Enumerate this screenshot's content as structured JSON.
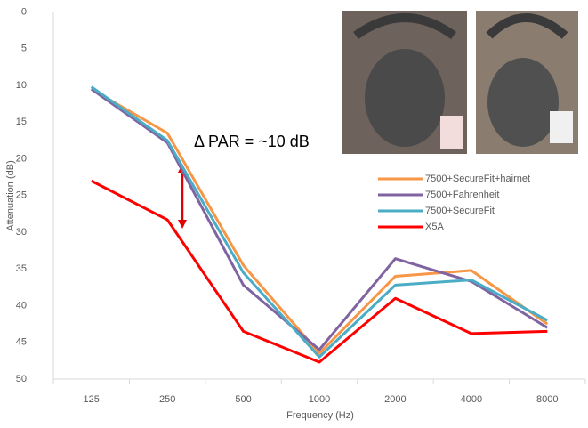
{
  "chart_data": {
    "type": "line",
    "x_label": "Frequency (Hz)",
    "y_label": "Attenuation (dB)",
    "annotation": "Δ PAR = ~10 dB",
    "categories": [
      "125",
      "250",
      "500",
      "1000",
      "2000",
      "4000",
      "8000"
    ],
    "ylim": [
      50,
      0
    ],
    "yticks": [
      0,
      5,
      10,
      15,
      20,
      25,
      30,
      35,
      40,
      45,
      50
    ],
    "grid": false,
    "legend": "right",
    "series": [
      {
        "name": "7500+SecureFit+hairnet",
        "color": "#f79646",
        "values": [
          10.5,
          16.5,
          34.5,
          46.5,
          36,
          35.2,
          42.5
        ]
      },
      {
        "name": "7500+Fahrenheit",
        "color": "#8064a2",
        "values": [
          10.5,
          17.8,
          37.2,
          46,
          33.6,
          36.7,
          43
        ]
      },
      {
        "name": "7500+SecureFit",
        "color": "#4bacc6",
        "values": [
          10.2,
          17.5,
          35.5,
          47,
          37.2,
          36.5,
          42
        ]
      },
      {
        "name": "X5A",
        "color": "#ff0000",
        "values": [
          23,
          28.3,
          43.5,
          47.7,
          39,
          43.8,
          43.5
        ]
      }
    ]
  }
}
